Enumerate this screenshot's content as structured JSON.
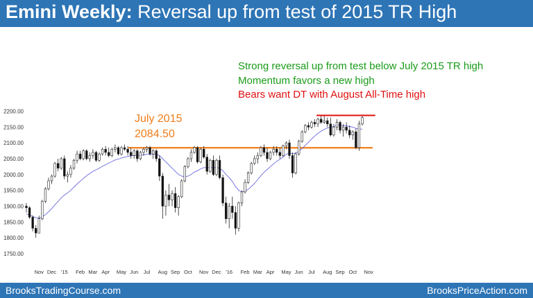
{
  "header": {
    "title_bold": "Emini Weekly:",
    "title_rest": "Reversal up from test of 2015 TR High"
  },
  "footer": {
    "left": "BrooksTradingCourse.com",
    "right": "BrooksPriceAction.com"
  },
  "annotations": {
    "line1": "Strong reversal up from test below July 2015 TR high",
    "line2": "Momentum favors a new high",
    "line3": "Bears want DT with August All-Time high",
    "level_label_1": "July 2015",
    "level_label_2": "2084.50"
  },
  "colors": {
    "title_bar": "#2e75b6",
    "green_text": "#1a9b1a",
    "red_text": "#e01010",
    "orange": "#f07d19",
    "ma_line": "#6a6ae0",
    "highlight": "#7ee07e"
  },
  "chart_data": {
    "type": "candlestick",
    "title": "",
    "ylim": [
      1730,
      2210
    ],
    "y_ticks": [
      "2200.00",
      "2150.00",
      "2100.00",
      "2050.00",
      "2000.00",
      "1950.00",
      "1900.00",
      "1850.00",
      "1800.00",
      "1750.00"
    ],
    "x_tick_labels": [
      "Nov",
      "Dec",
      "'15",
      "Feb",
      "Mar",
      "Apr",
      "May",
      "Jun",
      "Jul",
      "Aug",
      "Sep",
      "Oct",
      "Nov",
      "Dec",
      "'16",
      "Feb",
      "Mar",
      "Apr",
      "May",
      "Jun",
      "Jul",
      "Aug",
      "Sep",
      "Oct",
      "Nov"
    ],
    "x_tick_index": [
      4,
      8,
      12,
      17,
      21,
      25,
      30,
      34,
      38,
      43,
      47,
      51,
      56,
      60,
      64,
      69,
      73,
      77,
      82,
      86,
      90,
      95,
      99,
      103,
      108
    ],
    "horizontal_lines": [
      {
        "name": "July 2015 TR high",
        "value": 2084.5,
        "color": "#f07d19"
      },
      {
        "name": "August all-time high",
        "value": 2187,
        "color": "#e01010"
      }
    ],
    "highlight_bars": [
      107,
      109
    ],
    "ohlc": [
      [
        1900,
        1910,
        1880,
        1895
      ],
      [
        1895,
        1900,
        1860,
        1865
      ],
      [
        1865,
        1870,
        1820,
        1830
      ],
      [
        1830,
        1840,
        1800,
        1815
      ],
      [
        1815,
        1870,
        1815,
        1860
      ],
      [
        1860,
        1920,
        1855,
        1915
      ],
      [
        1915,
        1960,
        1910,
        1955
      ],
      [
        1955,
        1990,
        1950,
        1980
      ],
      [
        1980,
        2000,
        1970,
        1995
      ],
      [
        1995,
        2040,
        1990,
        2035
      ],
      [
        2035,
        2050,
        2010,
        2020
      ],
      [
        2020,
        2055,
        2015,
        2050
      ],
      [
        2050,
        2060,
        1985,
        1995
      ],
      [
        1995,
        2010,
        1975,
        2000
      ],
      [
        2000,
        2030,
        1990,
        2020
      ],
      [
        2020,
        2050,
        2015,
        2045
      ],
      [
        2045,
        2075,
        2035,
        2065
      ],
      [
        2065,
        2075,
        2045,
        2050
      ],
      [
        2050,
        2080,
        2045,
        2075
      ],
      [
        2075,
        2080,
        2045,
        2050
      ],
      [
        2050,
        2070,
        2040,
        2060
      ],
      [
        2060,
        2080,
        2050,
        2070
      ],
      [
        2070,
        2075,
        2040,
        2045
      ],
      [
        2045,
        2070,
        2040,
        2065
      ],
      [
        2065,
        2085,
        2060,
        2080
      ],
      [
        2080,
        2090,
        2060,
        2070
      ],
      [
        2070,
        2085,
        2055,
        2060
      ],
      [
        2060,
        2085,
        2055,
        2080
      ],
      [
        2080,
        2095,
        2070,
        2085
      ],
      [
        2085,
        2090,
        2060,
        2065
      ],
      [
        2065,
        2090,
        2060,
        2085
      ],
      [
        2085,
        2095,
        2075,
        2080
      ],
      [
        2080,
        2090,
        2060,
        2070
      ],
      [
        2070,
        2085,
        2050,
        2060
      ],
      [
        2060,
        2080,
        2050,
        2075
      ],
      [
        2075,
        2080,
        2040,
        2050
      ],
      [
        2050,
        2075,
        2045,
        2070
      ],
      [
        2070,
        2085,
        2060,
        2080
      ],
      [
        2080,
        2090,
        2070,
        2085
      ],
      [
        2085,
        2090,
        2060,
        2065
      ],
      [
        2065,
        2080,
        2050,
        2075
      ],
      [
        2075,
        2080,
        2040,
        2050
      ],
      [
        2050,
        2060,
        1980,
        1995
      ],
      [
        1995,
        2005,
        1860,
        1900
      ],
      [
        1900,
        1950,
        1870,
        1935
      ],
      [
        1935,
        1970,
        1900,
        1920
      ],
      [
        1920,
        1950,
        1900,
        1940
      ],
      [
        1940,
        1960,
        1880,
        1895
      ],
      [
        1895,
        1935,
        1870,
        1930
      ],
      [
        1930,
        1985,
        1925,
        1980
      ],
      [
        1980,
        2030,
        1975,
        2025
      ],
      [
        2025,
        2055,
        2020,
        2050
      ],
      [
        2050,
        2080,
        2040,
        2070
      ],
      [
        2070,
        2090,
        2065,
        2085
      ],
      [
        2085,
        2090,
        2035,
        2040
      ],
      [
        2040,
        2085,
        2035,
        2080
      ],
      [
        2080,
        2090,
        2050,
        2055
      ],
      [
        2055,
        2065,
        2000,
        2010
      ],
      [
        2010,
        2050,
        2005,
        2045
      ],
      [
        2045,
        2060,
        1995,
        2000
      ],
      [
        2000,
        2050,
        1995,
        2045
      ],
      [
        2045,
        2060,
        1985,
        1990
      ],
      [
        1990,
        2000,
        1900,
        1910
      ],
      [
        1910,
        1930,
        1845,
        1860
      ],
      [
        1860,
        1910,
        1830,
        1900
      ],
      [
        1900,
        1930,
        1860,
        1880
      ],
      [
        1880,
        1900,
        1810,
        1830
      ],
      [
        1830,
        1915,
        1820,
        1910
      ],
      [
        1910,
        1950,
        1900,
        1945
      ],
      [
        1945,
        1985,
        1940,
        1975
      ],
      [
        1975,
        2010,
        1970,
        2005
      ],
      [
        2005,
        2040,
        2000,
        2035
      ],
      [
        2035,
        2060,
        2030,
        2050
      ],
      [
        2050,
        2070,
        2035,
        2060
      ],
      [
        2060,
        2090,
        2055,
        2085
      ],
      [
        2085,
        2095,
        2060,
        2070
      ],
      [
        2070,
        2085,
        2040,
        2050
      ],
      [
        2050,
        2075,
        2045,
        2070
      ],
      [
        2070,
        2090,
        2060,
        2080
      ],
      [
        2080,
        2090,
        2060,
        2070
      ],
      [
        2070,
        2085,
        2050,
        2060
      ],
      [
        2060,
        2095,
        2055,
        2090
      ],
      [
        2090,
        2105,
        2080,
        2100
      ],
      [
        2100,
        2110,
        2050,
        2060
      ],
      [
        2060,
        2070,
        1990,
        2005
      ],
      [
        2005,
        2070,
        2000,
        2065
      ],
      [
        2065,
        2110,
        2060,
        2105
      ],
      [
        2105,
        2140,
        2100,
        2135
      ],
      [
        2135,
        2160,
        2130,
        2155
      ],
      [
        2155,
        2165,
        2140,
        2150
      ],
      [
        2150,
        2170,
        2145,
        2165
      ],
      [
        2165,
        2175,
        2150,
        2160
      ],
      [
        2160,
        2180,
        2150,
        2175
      ],
      [
        2175,
        2185,
        2160,
        2165
      ],
      [
        2165,
        2185,
        2160,
        2170
      ],
      [
        2170,
        2180,
        2150,
        2160
      ],
      [
        2160,
        2180,
        2120,
        2125
      ],
      [
        2125,
        2160,
        2120,
        2150
      ],
      [
        2150,
        2175,
        2140,
        2165
      ],
      [
        2165,
        2170,
        2130,
        2140
      ],
      [
        2140,
        2160,
        2120,
        2150
      ],
      [
        2150,
        2165,
        2130,
        2140
      ],
      [
        2140,
        2155,
        2115,
        2125
      ],
      [
        2125,
        2140,
        2110,
        2135
      ],
      [
        2135,
        2145,
        2080,
        2085
      ],
      [
        2085,
        2170,
        2075,
        2160
      ],
      [
        2160,
        2185,
        2155,
        2180
      ]
    ],
    "ma": [
      1875,
      1872,
      1868,
      1863,
      1862,
      1866,
      1873,
      1882,
      1892,
      1904,
      1915,
      1926,
      1935,
      1942,
      1950,
      1960,
      1970,
      1979,
      1988,
      1996,
      2003,
      2010,
      2015,
      2020,
      2026,
      2031,
      2036,
      2041,
      2046,
      2049,
      2052,
      2055,
      2057,
      2059,
      2060,
      2060,
      2061,
      2062,
      2064,
      2064,
      2065,
      2064,
      2060,
      2050,
      2040,
      2030,
      2020,
      2010,
      2000,
      1995,
      1993,
      1995,
      2000,
      2008,
      2012,
      2018,
      2022,
      2022,
      2022,
      2022,
      2022,
      2020,
      2012,
      2000,
      1990,
      1978,
      1962,
      1950,
      1945,
      1947,
      1953,
      1962,
      1972,
      1984,
      1996,
      2007,
      2016,
      2025,
      2034,
      2042,
      2048,
      2055,
      2064,
      2068,
      2066,
      2068,
      2074,
      2082,
      2092,
      2102,
      2112,
      2122,
      2130,
      2137,
      2143,
      2147,
      2150,
      2152,
      2155,
      2156,
      2154,
      2154,
      2152,
      2150,
      2146,
      2143,
      2144
    ]
  }
}
